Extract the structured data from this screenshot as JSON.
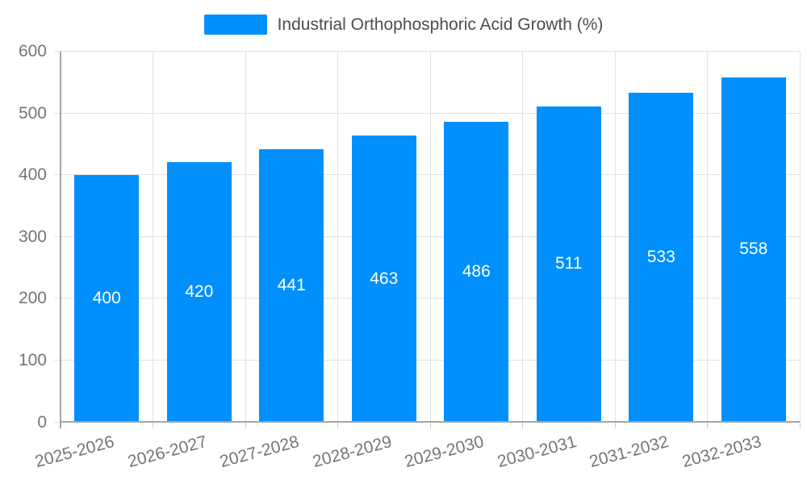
{
  "chart_data": {
    "type": "bar",
    "series_name": "Industrial Orthophosphoric Acid Growth (%)",
    "categories": [
      "2025-2026",
      "2026-2027",
      "2027-2028",
      "2028-2029",
      "2029-2030",
      "2030-2031",
      "2031-2032",
      "2032-2033"
    ],
    "values": [
      400,
      420,
      441,
      463,
      486,
      511,
      533,
      558
    ],
    "data_labels": [
      "400",
      "420",
      "441",
      "463",
      "486",
      "511",
      "533",
      "558"
    ],
    "ylim": [
      0,
      600
    ],
    "yticks": [
      0,
      100,
      200,
      300,
      400,
      500,
      600
    ],
    "xlabel": "",
    "ylabel": "",
    "grid": "on",
    "legend_position": "top-center",
    "colors": {
      "bar": "#008FFB",
      "bar_label": "#ffffff",
      "axis_label": "#757575",
      "legend_label": "#4d4d4d",
      "gridline": "#e2e2e2",
      "axis_line": "#a6a6a6",
      "tick": "#cccccc",
      "background": "#ffffff"
    }
  }
}
